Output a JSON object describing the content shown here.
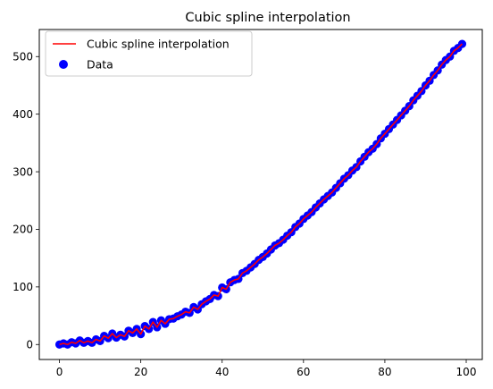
{
  "chart_data": {
    "type": "scatter",
    "title": "Cubic spline interpolation",
    "xlabel": "",
    "ylabel": "",
    "xlim": [
      -4.95,
      103.95
    ],
    "ylim": [
      -26,
      547
    ],
    "x_ticks": [
      0,
      20,
      40,
      60,
      80,
      100
    ],
    "y_ticks": [
      0,
      100,
      200,
      300,
      400,
      500
    ],
    "grid": false,
    "legend_position": "top-left",
    "colors": {
      "spline": "#ff0000",
      "data": "#0000ff"
    },
    "series": [
      {
        "name": "Cubic spline interpolation",
        "kind": "line",
        "x": [
          0,
          1,
          2,
          3,
          4,
          5,
          6,
          7,
          8,
          9,
          10,
          11,
          12,
          13,
          14,
          15,
          16,
          17,
          18,
          19,
          20,
          21,
          22,
          23,
          24,
          25,
          26,
          27,
          28,
          29,
          30,
          31,
          32,
          33,
          34,
          35,
          36,
          37,
          38,
          39,
          40,
          41,
          42,
          43,
          44,
          45,
          46,
          47,
          48,
          49,
          50,
          51,
          52,
          53,
          54,
          55,
          56,
          57,
          58,
          59,
          60,
          61,
          62,
          63,
          64,
          65,
          66,
          67,
          68,
          69,
          70,
          71,
          72,
          73,
          74,
          75,
          76,
          77,
          78,
          79,
          80,
          81,
          82,
          83,
          84,
          85,
          86,
          87,
          88,
          89,
          90,
          91,
          92,
          93,
          94,
          95,
          96,
          97,
          98,
          99
        ],
        "y": [
          0,
          2,
          0,
          4,
          2,
          7,
          3,
          6,
          3,
          9,
          6,
          15,
          11,
          19,
          12,
          17,
          14,
          24,
          20,
          27,
          18,
          32,
          27,
          39,
          30,
          42,
          36,
          44,
          45,
          49,
          52,
          57,
          55,
          65,
          61,
          70,
          75,
          79,
          86,
          84,
          99,
          96,
          108,
          112,
          114,
          124,
          128,
          134,
          140,
          147,
          152,
          158,
          165,
          172,
          176,
          182,
          189,
          195,
          204,
          210,
          218,
          224,
          230,
          238,
          245,
          252,
          258,
          264,
          272,
          280,
          288,
          294,
          302,
          308,
          318,
          326,
          334,
          340,
          348,
          358,
          366,
          374,
          382,
          390,
          398,
          406,
          414,
          424,
          432,
          440,
          450,
          458,
          468,
          476,
          486,
          494,
          500,
          510,
          515,
          522
        ]
      },
      {
        "name": "Data",
        "kind": "scatter",
        "x": [
          0,
          1,
          2,
          3,
          4,
          5,
          6,
          7,
          8,
          9,
          10,
          11,
          12,
          13,
          14,
          15,
          16,
          17,
          18,
          19,
          20,
          21,
          22,
          23,
          24,
          25,
          26,
          27,
          28,
          29,
          30,
          31,
          32,
          33,
          34,
          35,
          36,
          37,
          38,
          39,
          40,
          41,
          42,
          43,
          44,
          45,
          46,
          47,
          48,
          49,
          50,
          51,
          52,
          53,
          54,
          55,
          56,
          57,
          58,
          59,
          60,
          61,
          62,
          63,
          64,
          65,
          66,
          67,
          68,
          69,
          70,
          71,
          72,
          73,
          74,
          75,
          76,
          77,
          78,
          79,
          80,
          81,
          82,
          83,
          84,
          85,
          86,
          87,
          88,
          89,
          90,
          91,
          92,
          93,
          94,
          95,
          96,
          97,
          98,
          99
        ],
        "y": [
          0,
          2,
          0,
          4,
          2,
          7,
          3,
          6,
          3,
          9,
          6,
          15,
          11,
          19,
          12,
          17,
          14,
          24,
          20,
          27,
          18,
          32,
          27,
          39,
          30,
          42,
          36,
          44,
          45,
          49,
          52,
          57,
          55,
          65,
          61,
          70,
          75,
          79,
          86,
          84,
          99,
          96,
          108,
          112,
          114,
          124,
          128,
          134,
          140,
          147,
          152,
          158,
          165,
          172,
          176,
          182,
          189,
          195,
          204,
          210,
          218,
          224,
          230,
          238,
          245,
          252,
          258,
          264,
          272,
          280,
          288,
          294,
          302,
          308,
          318,
          326,
          334,
          340,
          348,
          358,
          366,
          374,
          382,
          390,
          398,
          406,
          414,
          424,
          432,
          440,
          450,
          458,
          468,
          476,
          486,
          494,
          500,
          510,
          515,
          522
        ]
      }
    ]
  }
}
